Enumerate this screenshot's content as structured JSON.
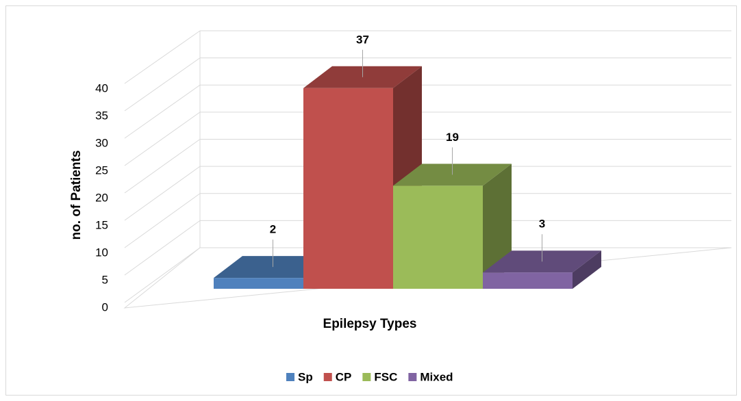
{
  "chart_data": {
    "type": "bar3d",
    "x_label": "Epilepsy Types",
    "y_label": "no. of Patients",
    "series": [
      {
        "name": "Sp",
        "color": "#4f81bd",
        "values": [
          2
        ]
      },
      {
        "name": "CP",
        "color": "#c0504d",
        "values": [
          37
        ]
      },
      {
        "name": "FSC",
        "color": "#9bbb59",
        "values": [
          19
        ]
      },
      {
        "name": "Mixed",
        "color": "#8064a2",
        "values": [
          3
        ]
      }
    ],
    "ylim": [
      0,
      40
    ],
    "yticks": [
      0,
      5,
      10,
      15,
      20,
      25,
      30,
      35,
      40
    ],
    "grid": true,
    "legend": "bottom"
  }
}
